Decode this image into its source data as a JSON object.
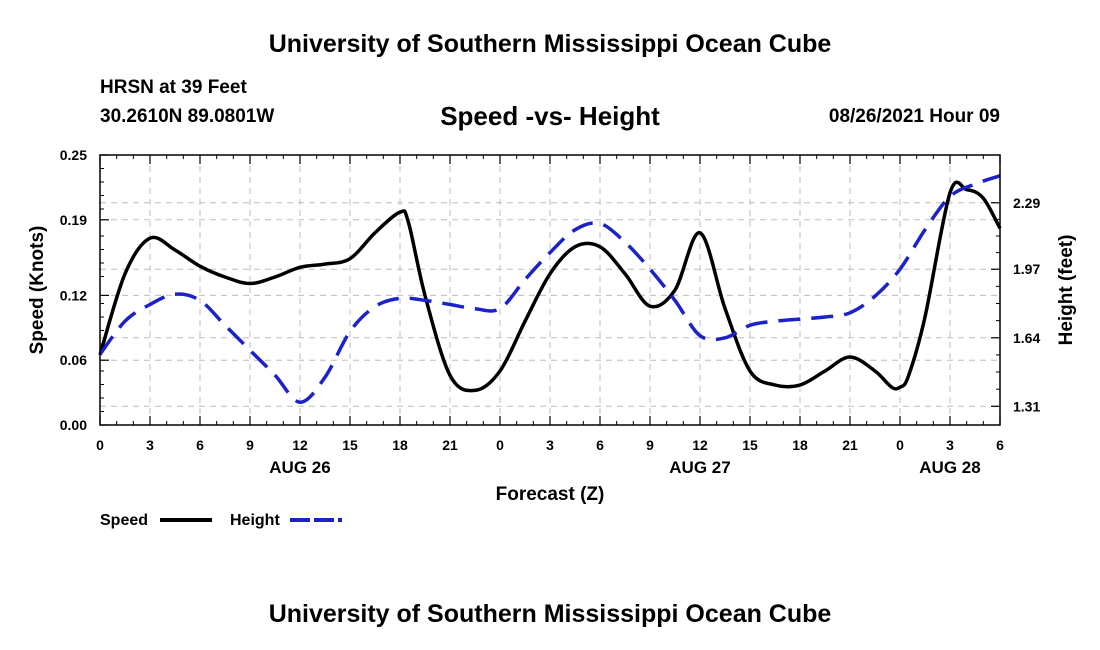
{
  "header": {
    "title": "University of Southern Mississippi Ocean Cube",
    "station": "HRSN at 39 Feet",
    "coords": "30.2610N  89.0801W",
    "date": "08/26/2021 Hour 09"
  },
  "footer": {
    "title": "University of Southern Mississippi Ocean Cube"
  },
  "colors": {
    "speed": "#000000",
    "height": "#1a22c8",
    "grid": "#bdbdbd"
  },
  "chart_data": {
    "type": "line",
    "title": "Speed -vs- Height",
    "xlabel": "Forecast (Z)",
    "ylabel_left": "Speed (Knots)",
    "ylabel_right": "Height (feet)",
    "x_unit": "forecast hours",
    "xlim": [
      0,
      54
    ],
    "ylim_left": [
      0,
      0.25
    ],
    "ylim_right": [
      1.22,
      2.52
    ],
    "x_ticks": [
      0,
      3,
      6,
      9,
      12,
      15,
      18,
      21,
      24,
      27,
      30,
      33,
      36,
      39,
      42,
      45,
      48,
      51,
      54
    ],
    "x_tick_labels": [
      "0",
      "3",
      "6",
      "9",
      "12",
      "15",
      "18",
      "21",
      "0",
      "3",
      "6",
      "9",
      "12",
      "15",
      "18",
      "21",
      "0",
      "3",
      "6"
    ],
    "x_minor_step": 1,
    "date_labels": [
      {
        "x": 12,
        "label": "AUG 26"
      },
      {
        "x": 36,
        "label": "AUG 27"
      },
      {
        "x": 51,
        "label": "AUG 28"
      }
    ],
    "left_ticks": [
      0,
      0.06,
      0.12,
      0.19,
      0.25
    ],
    "left_tick_labels": [
      "0.00",
      "0.06",
      "0.12",
      "0.19",
      "0.25"
    ],
    "left_minor": [
      0.0125,
      0.025,
      0.0375,
      0.05,
      0.075,
      0.0875,
      0.1,
      0.1125,
      0.1375,
      0.15,
      0.1625,
      0.175,
      0.2,
      0.2125,
      0.225,
      0.2375
    ],
    "right_ticks": [
      1.31,
      1.64,
      1.97,
      2.29
    ],
    "right_tick_labels": [
      "1.31",
      "1.64",
      "1.97",
      "2.29"
    ],
    "series": [
      {
        "name": "Speed",
        "axis": "left",
        "style": "solid",
        "x": [
          0,
          1.5,
          3,
          4.5,
          6,
          7.5,
          9,
          10.5,
          12,
          13.5,
          15,
          16.5,
          18,
          18.5,
          19.5,
          21,
          22.5,
          24,
          25.5,
          27,
          28.5,
          30,
          31.5,
          33,
          34.5,
          36,
          37.5,
          39,
          40.5,
          42,
          43.5,
          45,
          46.5,
          47.5,
          48,
          48.5,
          49.5,
          51,
          52,
          53,
          54
        ],
        "y": [
          0.065,
          0.14,
          0.173,
          0.162,
          0.147,
          0.137,
          0.131,
          0.137,
          0.146,
          0.149,
          0.154,
          0.178,
          0.197,
          0.188,
          0.12,
          0.046,
          0.032,
          0.05,
          0.096,
          0.14,
          0.165,
          0.165,
          0.14,
          0.11,
          0.125,
          0.178,
          0.108,
          0.05,
          0.037,
          0.037,
          0.05,
          0.063,
          0.05,
          0.035,
          0.035,
          0.045,
          0.1,
          0.215,
          0.218,
          0.21,
          0.182
        ]
      },
      {
        "name": "Height",
        "axis": "right",
        "style": "dashed",
        "x": [
          0,
          1.5,
          3,
          4.5,
          6,
          7.5,
          9,
          10.5,
          12,
          13.5,
          15,
          16.5,
          18,
          19.5,
          21,
          22.5,
          24,
          25.5,
          27,
          28.5,
          30,
          31.5,
          33,
          34.5,
          36,
          37.5,
          39,
          40.5,
          42,
          43.5,
          45,
          46.5,
          48,
          49.5,
          51,
          52.5,
          54
        ],
        "y": [
          1.56,
          1.72,
          1.8,
          1.85,
          1.82,
          1.7,
          1.58,
          1.46,
          1.33,
          1.45,
          1.67,
          1.79,
          1.83,
          1.82,
          1.8,
          1.78,
          1.78,
          1.92,
          2.05,
          2.16,
          2.19,
          2.1,
          1.97,
          1.82,
          1.65,
          1.64,
          1.7,
          1.72,
          1.73,
          1.74,
          1.76,
          1.84,
          1.97,
          2.16,
          2.32,
          2.38,
          2.42
        ]
      }
    ],
    "legend": [
      {
        "label": "Speed",
        "style": "solid"
      },
      {
        "label": "Height",
        "style": "dashed"
      }
    ]
  }
}
